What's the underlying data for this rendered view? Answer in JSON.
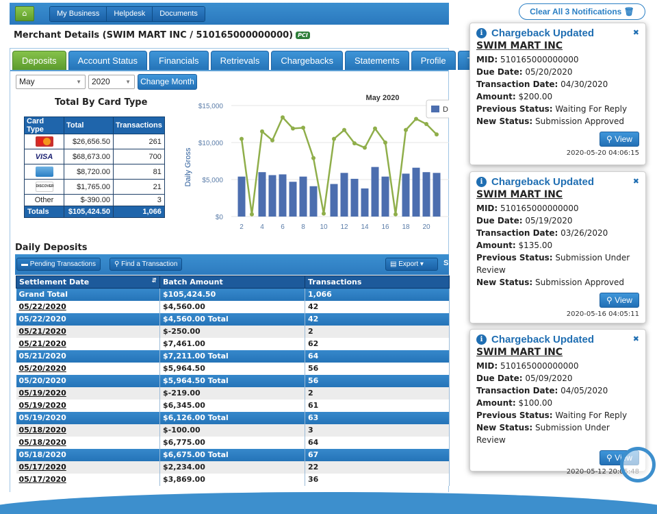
{
  "nav": {
    "home_icon": "home-icon",
    "items": [
      "My Business",
      "Helpdesk",
      "Documents"
    ]
  },
  "merchant": {
    "title": "Merchant Details (SWIM MART INC /  510165000000000)",
    "pci": "PCI"
  },
  "tabs": [
    "Deposits",
    "Account Status",
    "Financials",
    "Retrievals",
    "Chargebacks",
    "Statements",
    "Profile",
    "Tic"
  ],
  "filters": {
    "month": "May",
    "year": "2020",
    "change_label": "Change Month"
  },
  "card_type": {
    "title": "Total By Card Type",
    "headers": [
      "Card Type",
      "Total",
      "Transactions"
    ],
    "rows": [
      {
        "card": "MasterCard",
        "total": "$26,656.50",
        "tx": "261"
      },
      {
        "card": "VISA",
        "total": "$68,673.00",
        "tx": "700"
      },
      {
        "card": "Amex",
        "total": "$8,720.00",
        "tx": "81"
      },
      {
        "card": "DISCOVER",
        "total": "$1,765.00",
        "tx": "21"
      },
      {
        "card": "Other",
        "total": "$-390.00",
        "tx": "3"
      }
    ],
    "totals": {
      "label": "Totals",
      "total": "$105,424.50",
      "tx": "1,066"
    }
  },
  "chart_data": {
    "type": "bar",
    "title": "May 2020",
    "ylabel": "Daily Gross",
    "legend": "D",
    "yticks": [
      "$15,000",
      "$10,000",
      "$5,000",
      "$0"
    ],
    "ylim": [
      0,
      15000
    ],
    "xticks": [
      "2",
      "4",
      "6",
      "8",
      "10",
      "12",
      "14",
      "16",
      "18",
      "20"
    ],
    "x": [
      2,
      3,
      4,
      5,
      6,
      7,
      8,
      9,
      10,
      11,
      12,
      13,
      14,
      15,
      16,
      17,
      18,
      19,
      20,
      21
    ],
    "bars": [
      5400,
      0,
      6000,
      5600,
      5700,
      4700,
      5400,
      4100,
      0,
      4400,
      5900,
      5100,
      3800,
      6700,
      5400,
      0,
      5800,
      6600,
      6000,
      5900
    ],
    "line": [
      10500,
      300,
      11500,
      10300,
      13400,
      11900,
      12000,
      7900,
      400,
      10500,
      11700,
      9900,
      9300,
      11900,
      10000,
      300,
      11700,
      13200,
      12500,
      11100
    ]
  },
  "deposits": {
    "title": "Daily Deposits",
    "pending_label": "Pending Transactions",
    "find_label": "Find a Transaction",
    "export_label": "Export",
    "extra": "S",
    "headers": [
      "Settlement Date",
      "Batch Amount",
      "Transactions"
    ],
    "grand_total": [
      "Grand Total",
      "$105,424.50",
      "1,066"
    ],
    "rows": [
      {
        "type": "norm",
        "date": "05/22/2020",
        "amt": "$4,560.00",
        "tx": "42"
      },
      {
        "type": "subt",
        "date": "05/22/2020",
        "amt": "$4,560.00 Total",
        "tx": "42"
      },
      {
        "type": "alt",
        "date": "05/21/2020",
        "amt": "$-250.00",
        "tx": "2",
        "neg": true
      },
      {
        "type": "norm",
        "date": "05/21/2020",
        "amt": "$7,461.00",
        "tx": "62"
      },
      {
        "type": "subt",
        "date": "05/21/2020",
        "amt": "$7,211.00 Total",
        "tx": "64"
      },
      {
        "type": "norm",
        "date": "05/20/2020",
        "amt": "$5,964.50",
        "tx": "56"
      },
      {
        "type": "subt",
        "date": "05/20/2020",
        "amt": "$5,964.50 Total",
        "tx": "56"
      },
      {
        "type": "alt",
        "date": "05/19/2020",
        "amt": "$-219.00",
        "tx": "2",
        "neg": true
      },
      {
        "type": "norm",
        "date": "05/19/2020",
        "amt": "$6,345.00",
        "tx": "61"
      },
      {
        "type": "subt",
        "date": "05/19/2020",
        "amt": "$6,126.00 Total",
        "tx": "63"
      },
      {
        "type": "alt",
        "date": "05/18/2020",
        "amt": "$-100.00",
        "tx": "3",
        "neg": true
      },
      {
        "type": "norm",
        "date": "05/18/2020",
        "amt": "$6,775.00",
        "tx": "64"
      },
      {
        "type": "subt",
        "date": "05/18/2020",
        "amt": "$6,675.00 Total",
        "tx": "67"
      },
      {
        "type": "alt",
        "date": "05/17/2020",
        "amt": "$2,234.00",
        "tx": "22"
      },
      {
        "type": "norm",
        "date": "05/17/2020",
        "amt": "$3,869.00",
        "tx": "36"
      }
    ]
  },
  "notifications": {
    "clear_label": "Clear All 3 Notifications",
    "trash_icon": "trash-icon",
    "items": [
      {
        "title": "Chargeback Updated",
        "merchant": "SWIM MART INC",
        "mid": "510165000000000",
        "due": "05/20/2020",
        "txdate": "04/30/2020",
        "amount": "$200.00",
        "prev": "Waiting For Reply",
        "new": "Submission Approved",
        "view": "View",
        "ts": "2020-05-20 04:06:15"
      },
      {
        "title": "Chargeback Updated",
        "merchant": "SWIM MART INC",
        "mid": "510165000000000",
        "due": "05/19/2020",
        "txdate": "03/26/2020",
        "amount": "$135.00",
        "prev": "Submission Under Review",
        "new": "Submission Approved",
        "view": "View",
        "ts": "2020-05-16 04:05:11"
      },
      {
        "title": "Chargeback Updated",
        "merchant": "SWIM MART INC",
        "mid": "510165000000000",
        "due": "05/09/2020",
        "txdate": "04/05/2020",
        "amount": "$100.00",
        "prev": "Waiting For Reply",
        "new": "Submission Under Review",
        "view": "View",
        "ts": "2020-05-12 20:05:48"
      }
    ],
    "labels": {
      "mid": "MID:",
      "due": "Due Date:",
      "txdate": "Transaction Date:",
      "amount": "Amount:",
      "prev": "Previous Status:",
      "new": "New Status:"
    }
  }
}
